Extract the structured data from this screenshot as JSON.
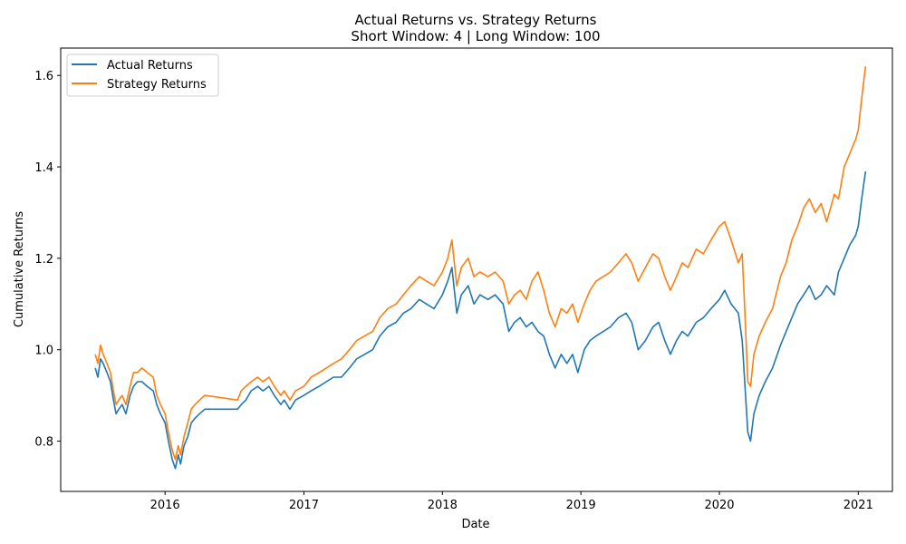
{
  "chart_data": {
    "type": "line",
    "title": "Actual Returns vs. Strategy Returns",
    "subtitle": "Short Window: 4 | Long Window: 100",
    "xlabel": "Date",
    "ylabel": "Cumulative Returns",
    "xlim": [
      "2015-04-01",
      "2021-04-01"
    ],
    "ylim": [
      0.69,
      1.66
    ],
    "xticks": [
      "2016-01-01",
      "2017-01-01",
      "2018-01-01",
      "2019-01-01",
      "2020-01-01",
      "2021-01-01"
    ],
    "xtick_labels": [
      "2016",
      "2017",
      "2018",
      "2019",
      "2020",
      "2021"
    ],
    "yticks": [
      0.8,
      1.0,
      1.2,
      1.4,
      1.6
    ],
    "ytick_labels": [
      "0.8",
      "1.0",
      "1.2",
      "1.4",
      "1.6"
    ],
    "grid": false,
    "legend": "top-left",
    "series": [
      {
        "name": "Actual Returns",
        "color": "#1f77b4",
        "points": [
          [
            "2015-07-01",
            0.96
          ],
          [
            "2015-07-08",
            0.94
          ],
          [
            "2015-07-15",
            0.98
          ],
          [
            "2015-07-22",
            0.97
          ],
          [
            "2015-08-01",
            0.95
          ],
          [
            "2015-08-10",
            0.93
          ],
          [
            "2015-08-18",
            0.89
          ],
          [
            "2015-08-25",
            0.86
          ],
          [
            "2015-09-01",
            0.87
          ],
          [
            "2015-09-10",
            0.88
          ],
          [
            "2015-09-20",
            0.86
          ],
          [
            "2015-10-01",
            0.9
          ],
          [
            "2015-10-10",
            0.92
          ],
          [
            "2015-10-20",
            0.93
          ],
          [
            "2015-11-01",
            0.93
          ],
          [
            "2015-11-15",
            0.92
          ],
          [
            "2015-12-01",
            0.91
          ],
          [
            "2015-12-10",
            0.88
          ],
          [
            "2015-12-20",
            0.86
          ],
          [
            "2016-01-01",
            0.84
          ],
          [
            "2016-01-10",
            0.8
          ],
          [
            "2016-01-20",
            0.76
          ],
          [
            "2016-01-28",
            0.74
          ],
          [
            "2016-02-05",
            0.77
          ],
          [
            "2016-02-11",
            0.75
          ],
          [
            "2016-02-20",
            0.79
          ],
          [
            "2016-03-01",
            0.81
          ],
          [
            "2016-03-10",
            0.84
          ],
          [
            "2016-03-20",
            0.85
          ],
          [
            "2016-04-01",
            0.86
          ],
          [
            "2016-04-15",
            0.87
          ],
          [
            "2016-07-10",
            0.87
          ],
          [
            "2016-07-20",
            0.88
          ],
          [
            "2016-08-01",
            0.89
          ],
          [
            "2016-08-15",
            0.91
          ],
          [
            "2016-09-01",
            0.92
          ],
          [
            "2016-09-15",
            0.91
          ],
          [
            "2016-10-01",
            0.92
          ],
          [
            "2016-10-15",
            0.9
          ],
          [
            "2016-11-01",
            0.88
          ],
          [
            "2016-11-10",
            0.89
          ],
          [
            "2016-11-25",
            0.87
          ],
          [
            "2016-12-10",
            0.89
          ],
          [
            "2017-01-01",
            0.9
          ],
          [
            "2017-01-20",
            0.91
          ],
          [
            "2017-02-10",
            0.92
          ],
          [
            "2017-03-01",
            0.93
          ],
          [
            "2017-03-20",
            0.94
          ],
          [
            "2017-04-10",
            0.94
          ],
          [
            "2017-05-01",
            0.96
          ],
          [
            "2017-05-20",
            0.98
          ],
          [
            "2017-06-10",
            0.99
          ],
          [
            "2017-07-01",
            1.0
          ],
          [
            "2017-07-20",
            1.03
          ],
          [
            "2017-08-10",
            1.05
          ],
          [
            "2017-09-01",
            1.06
          ],
          [
            "2017-09-20",
            1.08
          ],
          [
            "2017-10-10",
            1.09
          ],
          [
            "2017-11-01",
            1.11
          ],
          [
            "2017-11-20",
            1.1
          ],
          [
            "2017-12-10",
            1.09
          ],
          [
            "2018-01-01",
            1.12
          ],
          [
            "2018-01-15",
            1.15
          ],
          [
            "2018-01-26",
            1.18
          ],
          [
            "2018-02-08",
            1.08
          ],
          [
            "2018-02-20",
            1.12
          ],
          [
            "2018-03-10",
            1.14
          ],
          [
            "2018-03-25",
            1.1
          ],
          [
            "2018-04-10",
            1.12
          ],
          [
            "2018-05-01",
            1.11
          ],
          [
            "2018-05-20",
            1.12
          ],
          [
            "2018-06-10",
            1.1
          ],
          [
            "2018-06-25",
            1.04
          ],
          [
            "2018-07-10",
            1.06
          ],
          [
            "2018-07-25",
            1.07
          ],
          [
            "2018-08-10",
            1.05
          ],
          [
            "2018-08-25",
            1.06
          ],
          [
            "2018-09-10",
            1.04
          ],
          [
            "2018-09-25",
            1.03
          ],
          [
            "2018-10-10",
            0.99
          ],
          [
            "2018-10-25",
            0.96
          ],
          [
            "2018-11-10",
            0.99
          ],
          [
            "2018-11-25",
            0.97
          ],
          [
            "2018-12-10",
            0.99
          ],
          [
            "2018-12-24",
            0.95
          ],
          [
            "2019-01-10",
            1.0
          ],
          [
            "2019-01-25",
            1.02
          ],
          [
            "2019-02-10",
            1.03
          ],
          [
            "2019-03-01",
            1.04
          ],
          [
            "2019-03-20",
            1.05
          ],
          [
            "2019-04-10",
            1.07
          ],
          [
            "2019-04-30",
            1.08
          ],
          [
            "2019-05-15",
            1.06
          ],
          [
            "2019-06-01",
            1.0
          ],
          [
            "2019-06-20",
            1.02
          ],
          [
            "2019-07-10",
            1.05
          ],
          [
            "2019-07-25",
            1.06
          ],
          [
            "2019-08-10",
            1.02
          ],
          [
            "2019-08-25",
            0.99
          ],
          [
            "2019-09-10",
            1.02
          ],
          [
            "2019-09-25",
            1.04
          ],
          [
            "2019-10-10",
            1.03
          ],
          [
            "2019-11-01",
            1.06
          ],
          [
            "2019-11-20",
            1.07
          ],
          [
            "2019-12-10",
            1.09
          ],
          [
            "2020-01-01",
            1.11
          ],
          [
            "2020-01-15",
            1.13
          ],
          [
            "2020-02-01",
            1.1
          ],
          [
            "2020-02-20",
            1.08
          ],
          [
            "2020-03-01",
            1.02
          ],
          [
            "2020-03-10",
            0.9
          ],
          [
            "2020-03-16",
            0.82
          ],
          [
            "2020-03-23",
            0.8
          ],
          [
            "2020-04-01",
            0.86
          ],
          [
            "2020-04-15",
            0.9
          ],
          [
            "2020-05-01",
            0.93
          ],
          [
            "2020-05-20",
            0.96
          ],
          [
            "2020-06-10",
            1.01
          ],
          [
            "2020-06-25",
            1.04
          ],
          [
            "2020-07-10",
            1.07
          ],
          [
            "2020-07-25",
            1.1
          ],
          [
            "2020-08-10",
            1.12
          ],
          [
            "2020-08-25",
            1.14
          ],
          [
            "2020-09-10",
            1.11
          ],
          [
            "2020-09-25",
            1.12
          ],
          [
            "2020-10-10",
            1.14
          ],
          [
            "2020-10-30",
            1.12
          ],
          [
            "2020-11-10",
            1.17
          ],
          [
            "2020-11-25",
            1.2
          ],
          [
            "2020-12-10",
            1.23
          ],
          [
            "2020-12-25",
            1.25
          ],
          [
            "2021-01-01",
            1.27
          ],
          [
            "2021-01-10",
            1.33
          ],
          [
            "2021-01-20",
            1.39
          ]
        ]
      },
      {
        "name": "Strategy Returns",
        "color": "#ff7f0e",
        "points": [
          [
            "2015-07-01",
            0.99
          ],
          [
            "2015-07-08",
            0.97
          ],
          [
            "2015-07-15",
            1.01
          ],
          [
            "2015-07-22",
            0.99
          ],
          [
            "2015-08-01",
            0.97
          ],
          [
            "2015-08-10",
            0.95
          ],
          [
            "2015-08-18",
            0.91
          ],
          [
            "2015-08-25",
            0.88
          ],
          [
            "2015-09-01",
            0.89
          ],
          [
            "2015-09-10",
            0.9
          ],
          [
            "2015-09-20",
            0.88
          ],
          [
            "2015-10-01",
            0.92
          ],
          [
            "2015-10-10",
            0.95
          ],
          [
            "2015-10-20",
            0.95
          ],
          [
            "2015-11-01",
            0.96
          ],
          [
            "2015-11-15",
            0.95
          ],
          [
            "2015-12-01",
            0.94
          ],
          [
            "2015-12-10",
            0.9
          ],
          [
            "2015-12-20",
            0.88
          ],
          [
            "2016-01-01",
            0.86
          ],
          [
            "2016-01-10",
            0.82
          ],
          [
            "2016-01-20",
            0.78
          ],
          [
            "2016-01-28",
            0.76
          ],
          [
            "2016-02-05",
            0.79
          ],
          [
            "2016-02-11",
            0.77
          ],
          [
            "2016-02-20",
            0.81
          ],
          [
            "2016-03-01",
            0.84
          ],
          [
            "2016-03-10",
            0.87
          ],
          [
            "2016-03-20",
            0.88
          ],
          [
            "2016-04-01",
            0.89
          ],
          [
            "2016-04-15",
            0.9
          ],
          [
            "2016-07-10",
            0.89
          ],
          [
            "2016-07-20",
            0.91
          ],
          [
            "2016-08-01",
            0.92
          ],
          [
            "2016-08-15",
            0.93
          ],
          [
            "2016-09-01",
            0.94
          ],
          [
            "2016-09-15",
            0.93
          ],
          [
            "2016-10-01",
            0.94
          ],
          [
            "2016-10-15",
            0.92
          ],
          [
            "2016-11-01",
            0.9
          ],
          [
            "2016-11-10",
            0.91
          ],
          [
            "2016-11-25",
            0.89
          ],
          [
            "2016-12-10",
            0.91
          ],
          [
            "2017-01-01",
            0.92
          ],
          [
            "2017-01-20",
            0.94
          ],
          [
            "2017-02-10",
            0.95
          ],
          [
            "2017-03-01",
            0.96
          ],
          [
            "2017-03-20",
            0.97
          ],
          [
            "2017-04-10",
            0.98
          ],
          [
            "2017-05-01",
            1.0
          ],
          [
            "2017-05-20",
            1.02
          ],
          [
            "2017-06-10",
            1.03
          ],
          [
            "2017-07-01",
            1.04
          ],
          [
            "2017-07-20",
            1.07
          ],
          [
            "2017-08-10",
            1.09
          ],
          [
            "2017-09-01",
            1.1
          ],
          [
            "2017-09-20",
            1.12
          ],
          [
            "2017-10-10",
            1.14
          ],
          [
            "2017-11-01",
            1.16
          ],
          [
            "2017-11-20",
            1.15
          ],
          [
            "2017-12-10",
            1.14
          ],
          [
            "2018-01-01",
            1.17
          ],
          [
            "2018-01-15",
            1.2
          ],
          [
            "2018-01-26",
            1.24
          ],
          [
            "2018-02-08",
            1.14
          ],
          [
            "2018-02-20",
            1.18
          ],
          [
            "2018-03-10",
            1.2
          ],
          [
            "2018-03-25",
            1.16
          ],
          [
            "2018-04-10",
            1.17
          ],
          [
            "2018-05-01",
            1.16
          ],
          [
            "2018-05-20",
            1.17
          ],
          [
            "2018-06-10",
            1.15
          ],
          [
            "2018-06-25",
            1.1
          ],
          [
            "2018-07-10",
            1.12
          ],
          [
            "2018-07-25",
            1.13
          ],
          [
            "2018-08-10",
            1.11
          ],
          [
            "2018-08-25",
            1.15
          ],
          [
            "2018-09-10",
            1.17
          ],
          [
            "2018-09-25",
            1.13
          ],
          [
            "2018-10-10",
            1.08
          ],
          [
            "2018-10-25",
            1.05
          ],
          [
            "2018-11-10",
            1.09
          ],
          [
            "2018-11-25",
            1.08
          ],
          [
            "2018-12-10",
            1.1
          ],
          [
            "2018-12-24",
            1.06
          ],
          [
            "2019-01-10",
            1.1
          ],
          [
            "2019-01-25",
            1.13
          ],
          [
            "2019-02-10",
            1.15
          ],
          [
            "2019-03-01",
            1.16
          ],
          [
            "2019-03-20",
            1.17
          ],
          [
            "2019-04-10",
            1.19
          ],
          [
            "2019-04-30",
            1.21
          ],
          [
            "2019-05-15",
            1.19
          ],
          [
            "2019-06-01",
            1.15
          ],
          [
            "2019-06-20",
            1.18
          ],
          [
            "2019-07-10",
            1.21
          ],
          [
            "2019-07-25",
            1.2
          ],
          [
            "2019-08-10",
            1.16
          ],
          [
            "2019-08-25",
            1.13
          ],
          [
            "2019-09-10",
            1.16
          ],
          [
            "2019-09-25",
            1.19
          ],
          [
            "2019-10-10",
            1.18
          ],
          [
            "2019-11-01",
            1.22
          ],
          [
            "2019-11-20",
            1.21
          ],
          [
            "2019-12-10",
            1.24
          ],
          [
            "2020-01-01",
            1.27
          ],
          [
            "2020-01-15",
            1.28
          ],
          [
            "2020-02-01",
            1.24
          ],
          [
            "2020-02-20",
            1.19
          ],
          [
            "2020-03-01",
            1.21
          ],
          [
            "2020-03-10",
            1.05
          ],
          [
            "2020-03-16",
            0.93
          ],
          [
            "2020-03-23",
            0.92
          ],
          [
            "2020-04-01",
            0.99
          ],
          [
            "2020-04-15",
            1.03
          ],
          [
            "2020-05-01",
            1.06
          ],
          [
            "2020-05-20",
            1.09
          ],
          [
            "2020-06-10",
            1.16
          ],
          [
            "2020-06-25",
            1.19
          ],
          [
            "2020-07-10",
            1.24
          ],
          [
            "2020-07-25",
            1.27
          ],
          [
            "2020-08-10",
            1.31
          ],
          [
            "2020-08-25",
            1.33
          ],
          [
            "2020-09-10",
            1.3
          ],
          [
            "2020-09-25",
            1.32
          ],
          [
            "2020-10-10",
            1.28
          ],
          [
            "2020-10-30",
            1.34
          ],
          [
            "2020-11-10",
            1.33
          ],
          [
            "2020-11-25",
            1.4
          ],
          [
            "2020-12-10",
            1.43
          ],
          [
            "2020-12-25",
            1.46
          ],
          [
            "2021-01-01",
            1.48
          ],
          [
            "2021-01-10",
            1.55
          ],
          [
            "2021-01-20",
            1.62
          ]
        ]
      }
    ]
  }
}
